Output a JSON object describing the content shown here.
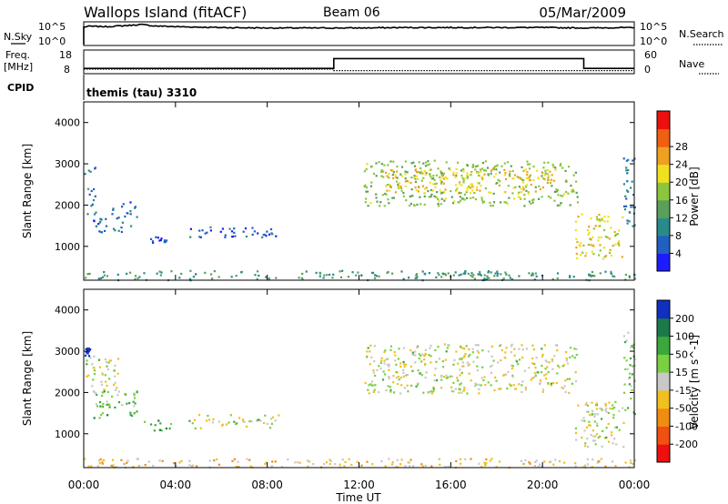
{
  "header": {
    "station": "Wallops Island (fitACF)",
    "beam": "Beam 06",
    "date": "05/Mar/2009"
  },
  "strip_labels": {
    "nsky": "N.Sky",
    "nsearch": "N.Search",
    "freq": "Freq.",
    "freq_unit": "[MHz]",
    "nave": "Nave",
    "cpid": "CPID",
    "cpid_value": "themis (tau) 3310",
    "noise_ticks": [
      "10^5",
      "10^0"
    ],
    "freq_ticks": [
      "18",
      "8"
    ],
    "nave_ticks": [
      "60",
      "0"
    ]
  },
  "x_axis": {
    "title": "Time UT",
    "ticks": [
      "00:00",
      "04:00",
      "08:00",
      "12:00",
      "16:00",
      "20:00",
      "00:00"
    ]
  },
  "y_axis": {
    "title": "Slant Range [km]",
    "ticks": [
      "1000",
      "2000",
      "3000",
      "4000"
    ]
  },
  "colorbars": {
    "power": {
      "title": "Power [dB]",
      "ticks": [
        "4",
        "8",
        "12",
        "16",
        "20",
        "24",
        "28"
      ],
      "colors": [
        "#1c1cff",
        "#2060c0",
        "#2a8a8a",
        "#5aa05a",
        "#8cc63c",
        "#f0e020",
        "#f0a020",
        "#f06010",
        "#ee1010"
      ]
    },
    "velocity": {
      "title": "Velocity [m s^-1]",
      "ticks": [
        "200",
        "100",
        "50",
        "15",
        "-15",
        "-50",
        "-100",
        "-200"
      ],
      "colors": [
        "#1030c0",
        "#1c7a4a",
        "#3aa83a",
        "#7ad040",
        "#c8c8c8",
        "#f0c020",
        "#f08c10",
        "#f05010",
        "#ee1010"
      ]
    }
  },
  "chart_data": [
    {
      "type": "line",
      "name": "noise-strip",
      "x_unit": "hours UT",
      "xlim": [
        0,
        24
      ],
      "series": [
        {
          "name": "N.Sky",
          "x": [
            0,
            0.2,
            1,
            2,
            2.5,
            3,
            4,
            6,
            8,
            10,
            12,
            14,
            16,
            18,
            20,
            22,
            23.5,
            24
          ],
          "values": [
            4.0,
            4.2,
            4.1,
            4.4,
            4.6,
            4.3,
            4.1,
            3.9,
            3.8,
            3.8,
            3.8,
            3.9,
            3.9,
            3.9,
            3.9,
            3.8,
            3.9,
            3.8
          ]
        }
      ],
      "ylim": [
        0,
        5
      ]
    },
    {
      "type": "line",
      "name": "frequency-nave-strip",
      "x_unit": "hours UT",
      "xlim": [
        0,
        24
      ],
      "series": [
        {
          "name": "Freq.",
          "x": [
            0,
            10.9,
            10.9,
            21.8,
            21.8,
            24
          ],
          "values": [
            10.0,
            10.0,
            14.5,
            14.5,
            10.0,
            10.0
          ]
        },
        {
          "name": "Nave",
          "x": [
            0,
            10.9,
            10.9,
            24
          ],
          "values": [
            10,
            10,
            6,
            6
          ]
        }
      ],
      "ylim_freq": [
        8,
        18
      ],
      "ylim_nave": [
        0,
        60
      ]
    },
    {
      "type": "heatmap",
      "name": "power-panel",
      "value_unit": "dB",
      "xlim": [
        0,
        24
      ],
      "ylim": [
        180,
        4500
      ],
      "clim": [
        0,
        30
      ],
      "regions": [
        {
          "t": [
            0,
            0.5
          ],
          "r": [
            1800,
            3050
          ],
          "v": 7
        },
        {
          "t": [
            0.4,
            2.2
          ],
          "r": [
            1350,
            1750
          ],
          "v": 6
        },
        {
          "t": [
            1.2,
            2.3
          ],
          "r": [
            1700,
            2100
          ],
          "v": 6
        },
        {
          "t": [
            2.6,
            3.8
          ],
          "r": [
            1100,
            1300
          ],
          "v": 5
        },
        {
          "t": [
            4.5,
            8.5
          ],
          "r": [
            1200,
            1500
          ],
          "v": 5
        },
        {
          "t": [
            0,
            24
          ],
          "r": [
            200,
            430
          ],
          "v": 10
        },
        {
          "t": [
            12.2,
            21.5
          ],
          "r": [
            2000,
            3100
          ],
          "v": 14
        },
        {
          "t": [
            13,
            20.5
          ],
          "r": [
            2300,
            2900
          ],
          "v": 20
        },
        {
          "t": [
            21.4,
            23.5
          ],
          "r": [
            700,
            1800
          ],
          "v": 18
        },
        {
          "t": [
            23.5,
            24
          ],
          "r": [
            1500,
            3200
          ],
          "v": 7
        }
      ]
    },
    {
      "type": "heatmap",
      "name": "velocity-panel",
      "value_unit": "m s^-1",
      "xlim": [
        0,
        24
      ],
      "ylim": [
        180,
        4500
      ],
      "clim": [
        -200,
        200
      ],
      "regions": [
        {
          "t": [
            0,
            1.5
          ],
          "r": [
            2000,
            2900
          ],
          "v": 0
        },
        {
          "t": [
            0.4,
            2.3
          ],
          "r": [
            1400,
            2050
          ],
          "v": 50
        },
        {
          "t": [
            2.6,
            3.8
          ],
          "r": [
            1100,
            1350
          ],
          "v": 50
        },
        {
          "t": [
            4.5,
            8.5
          ],
          "r": [
            1150,
            1500
          ],
          "v": 0
        },
        {
          "t": [
            0,
            24
          ],
          "r": [
            200,
            420
          ],
          "v": -30
        },
        {
          "t": [
            12.2,
            21.5
          ],
          "r": [
            2000,
            3200
          ],
          "v": 0
        },
        {
          "t": [
            21.4,
            23.5
          ],
          "r": [
            700,
            1800
          ],
          "v": 0
        },
        {
          "t": [
            0,
            0.3
          ],
          "r": [
            2900,
            3100
          ],
          "v": 200
        },
        {
          "t": [
            23.5,
            24
          ],
          "r": [
            1500,
            3500
          ],
          "v": 30
        }
      ]
    }
  ]
}
